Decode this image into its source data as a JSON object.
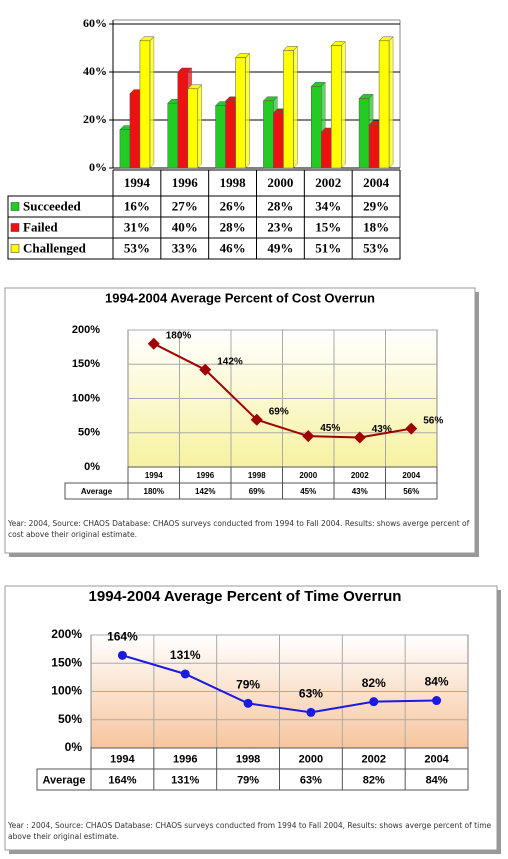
{
  "chart_data": [
    {
      "type": "bar",
      "categories": [
        "1994",
        "1996",
        "1998",
        "2000",
        "2002",
        "2004"
      ],
      "series": [
        {
          "name": "Succeeded",
          "color": "#22cc22",
          "values": [
            16,
            27,
            26,
            28,
            34,
            29
          ],
          "value_labels": [
            "16%",
            "27%",
            "26%",
            "28%",
            "34%",
            "29%"
          ]
        },
        {
          "name": "Failed",
          "color": "#ee1111",
          "values": [
            31,
            40,
            28,
            23,
            15,
            18
          ],
          "value_labels": [
            "31%",
            "40%",
            "28%",
            "23%",
            "15%",
            "18%"
          ]
        },
        {
          "name": "Challenged",
          "color": "#ffff00",
          "values": [
            53,
            33,
            46,
            49,
            51,
            53
          ],
          "value_labels": [
            "53%",
            "33%",
            "46%",
            "49%",
            "51%",
            "53%"
          ]
        }
      ],
      "ylim": [
        0,
        60
      ],
      "yticks": [
        {
          "value": 0,
          "label": "0%"
        },
        {
          "value": 20,
          "label": "20%"
        },
        {
          "value": 40,
          "label": "40%"
        },
        {
          "value": 60,
          "label": "60%"
        }
      ],
      "grid": true
    },
    {
      "type": "line",
      "title": "1994-2004 Average Percent of  Cost Overrun",
      "categories": [
        "1994",
        "1996",
        "1998",
        "2000",
        "2002",
        "2004"
      ],
      "series": [
        {
          "name": "Average",
          "color": "#a00000",
          "values": [
            180,
            142,
            69,
            45,
            43,
            56
          ],
          "value_labels": [
            "180%",
            "142%",
            "69%",
            "45%",
            "43%",
            "56%"
          ]
        }
      ],
      "ylim": [
        0,
        200
      ],
      "yticks": [
        {
          "value": 0,
          "label": "0%"
        },
        {
          "value": 50,
          "label": "50%"
        },
        {
          "value": 100,
          "label": "100%"
        },
        {
          "value": 150,
          "label": "150%"
        },
        {
          "value": 200,
          "label": "200%"
        }
      ],
      "grid": true,
      "note": "Year: 2004, Source: CHAOS Database: CHAOS surveys conducted from 1994 to Fall 2004. Results: shows averge percent of cost above their original estimate."
    },
    {
      "type": "line",
      "title": "1994-2004 Average Percent of Time Overrun",
      "categories": [
        "1994",
        "1996",
        "1998",
        "2000",
        "2002",
        "2004"
      ],
      "series": [
        {
          "name": "Average",
          "color": "#1a1ae0",
          "values": [
            164,
            131,
            79,
            63,
            82,
            84
          ],
          "value_labels": [
            "164%",
            "131%",
            "79%",
            "63%",
            "82%",
            "84%"
          ]
        }
      ],
      "ylim": [
        0,
        200
      ],
      "yticks": [
        {
          "value": 0,
          "label": "0%"
        },
        {
          "value": 50,
          "label": "50%"
        },
        {
          "value": 100,
          "label": "100%"
        },
        {
          "value": 150,
          "label": "150%"
        },
        {
          "value": 200,
          "label": "200%"
        }
      ],
      "grid": true,
      "note": "Year : 2004, Source: CHAOS Database: CHAOS surveys conducted from 1994 to Fall 2004, Results: shows averge percent of time above their original estimate."
    }
  ]
}
